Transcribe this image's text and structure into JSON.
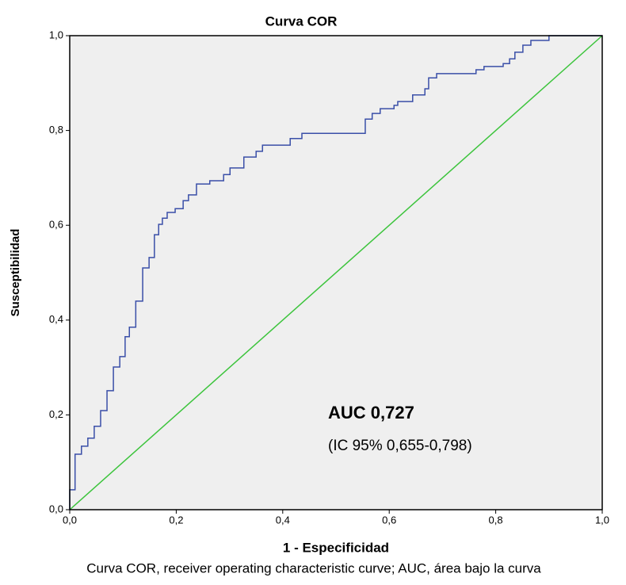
{
  "chart_data": {
    "type": "line",
    "title": "Curva COR",
    "x_label": "1 - Especificidad",
    "y_label": "Susceptibilidad",
    "annotations": [
      "AUC 0,727",
      "(IC 95% 0,655-0,798)"
    ],
    "caption": "Curva COR,  receiver operating characteristic curve; AUC, área bajo la curva",
    "xlim": [
      0,
      1
    ],
    "ylim": [
      0,
      1
    ],
    "xticks": [
      {
        "value": 0,
        "label": "0,0"
      },
      {
        "value": 0.2,
        "label": "0,2"
      },
      {
        "value": 0.4,
        "label": "0,4"
      },
      {
        "value": 0.6,
        "label": "0,6"
      },
      {
        "value": 0.8,
        "label": "0,8"
      },
      {
        "value": 1,
        "label": "1,0"
      }
    ],
    "yticks": [
      {
        "value": 0,
        "label": "0,0"
      },
      {
        "value": 0.2,
        "label": "0,2"
      },
      {
        "value": 0.4,
        "label": "0,4"
      },
      {
        "value": 0.6,
        "label": "0,6"
      },
      {
        "value": 0.8,
        "label": "0,8"
      },
      {
        "value": 1,
        "label": "1,0"
      }
    ],
    "grid": false,
    "series": [
      {
        "color": "#3a4fa8",
        "x": [
          0,
          0,
          0.01,
          0.01,
          0.022,
          0.022,
          0.034,
          0.034,
          0.046,
          0.046,
          0.058,
          0.058,
          0.07,
          0.07,
          0.082,
          0.082,
          0.094,
          0.094,
          0.104,
          0.104,
          0.112,
          0.112,
          0.124,
          0.124,
          0.137,
          0.137,
          0.149,
          0.149,
          0.159,
          0.159,
          0.167,
          0.167,
          0.174,
          0.174,
          0.183,
          0.183,
          0.198,
          0.198,
          0.213,
          0.213,
          0.223,
          0.223,
          0.238,
          0.238,
          0.263,
          0.263,
          0.289,
          0.289,
          0.301,
          0.301,
          0.327,
          0.327,
          0.35,
          0.35,
          0.362,
          0.362,
          0.414,
          0.414,
          0.436,
          0.436,
          0.555,
          0.555,
          0.568,
          0.568,
          0.583,
          0.583,
          0.609,
          0.609,
          0.616,
          0.616,
          0.644,
          0.644,
          0.667,
          0.667,
          0.674,
          0.674,
          0.689,
          0.689,
          0.763,
          0.763,
          0.778,
          0.778,
          0.814,
          0.814,
          0.826,
          0.826,
          0.836,
          0.836,
          0.851,
          0.851,
          0.866,
          0.866,
          0.9,
          0.9,
          1
        ],
        "values": [
          0,
          0.042,
          0.042,
          0.117,
          0.117,
          0.134,
          0.134,
          0.151,
          0.151,
          0.176,
          0.176,
          0.209,
          0.209,
          0.251,
          0.251,
          0.301,
          0.301,
          0.323,
          0.323,
          0.365,
          0.365,
          0.385,
          0.385,
          0.44,
          0.44,
          0.51,
          0.51,
          0.532,
          0.532,
          0.58,
          0.58,
          0.602,
          0.602,
          0.615,
          0.615,
          0.627,
          0.627,
          0.635,
          0.635,
          0.652,
          0.652,
          0.664,
          0.664,
          0.687,
          0.687,
          0.694,
          0.694,
          0.707,
          0.707,
          0.721,
          0.721,
          0.744,
          0.744,
          0.756,
          0.756,
          0.769,
          0.769,
          0.783,
          0.783,
          0.794,
          0.794,
          0.824,
          0.824,
          0.836,
          0.836,
          0.846,
          0.846,
          0.853,
          0.853,
          0.861,
          0.861,
          0.875,
          0.875,
          0.888,
          0.888,
          0.911,
          0.911,
          0.92,
          0.92,
          0.928,
          0.928,
          0.935,
          0.935,
          0.941,
          0.941,
          0.951,
          0.951,
          0.965,
          0.965,
          0.98,
          0.98,
          0.99,
          0.99,
          1,
          1
        ]
      },
      {
        "color": "#3cc43c",
        "x": [
          0,
          1
        ],
        "values": [
          0,
          1
        ]
      }
    ]
  }
}
